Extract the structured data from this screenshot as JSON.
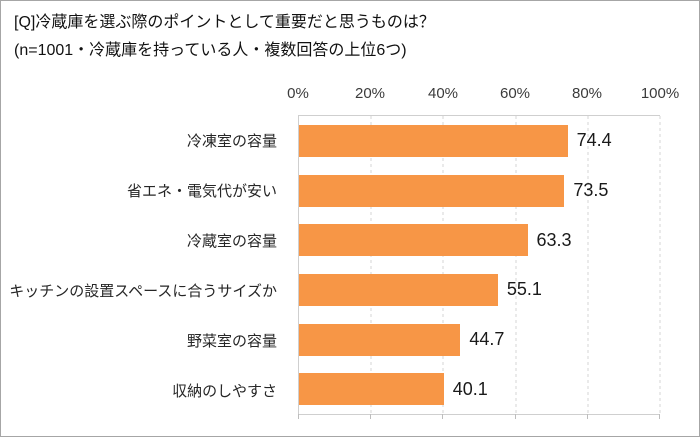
{
  "chart_data": {
    "type": "bar",
    "orientation": "horizontal",
    "title": "[Q]冷蔵庫を選ぶ際のポイントとして重要だと思うものは？",
    "subtitle": "(n=1001・冷蔵庫を持っている人・複数回答の上位6つ)",
    "categories": [
      "冷凍室の容量",
      "省エネ・電気代が安い",
      "冷蔵室の容量",
      "キッチンの設置スペースに合うサイズか",
      "野菜室の容量",
      "収納のしやすさ"
    ],
    "values": [
      74.4,
      73.5,
      63.3,
      55.1,
      44.7,
      40.1
    ],
    "x_ticks": [
      "0%",
      "20%",
      "40%",
      "60%",
      "80%",
      "100%"
    ],
    "xlim": [
      0,
      100
    ],
    "xlabel": "",
    "ylabel": "",
    "grid": "vertical-dashed",
    "legend": "none"
  },
  "colors": {
    "bar": "#F79646",
    "gridline": "#d4d4d4",
    "plot_border": "#cfcfcf",
    "frame_border": "#a6a6a6",
    "text": "#1a1a1a"
  }
}
